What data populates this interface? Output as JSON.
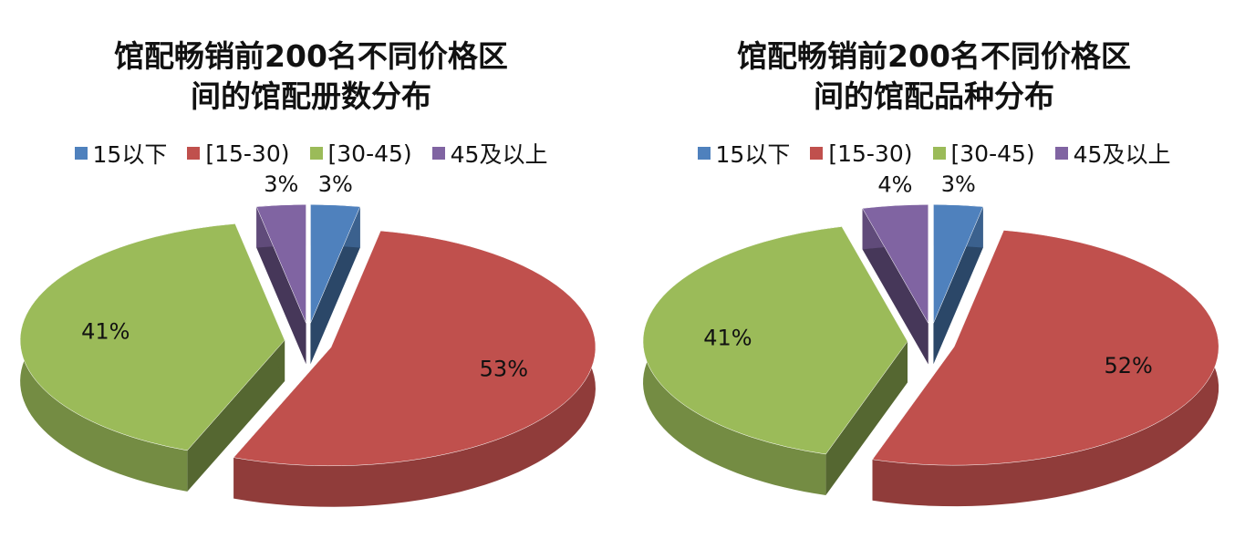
{
  "chart_data": [
    {
      "type": "pie",
      "title": [
        "馆配畅销前200名不同价格区",
        "间的馆配册数分布"
      ],
      "categories": [
        "15以下",
        "[15-30)",
        "[30-45)",
        "45及以上"
      ],
      "values": [
        3,
        53,
        41,
        3
      ],
      "value_labels": [
        "3%",
        "53%",
        "41%",
        "3%"
      ],
      "colors": [
        "#4f81bd",
        "#c0504d",
        "#9bbb59",
        "#8064a2"
      ],
      "legend": "top"
    },
    {
      "type": "pie",
      "title": [
        "馆配畅销前200名不同价格区",
        "间的馆配品种分布"
      ],
      "categories": [
        "15以下",
        "[15-30)",
        "[30-45)",
        "45及以上"
      ],
      "values": [
        3,
        52,
        41,
        4
      ],
      "value_labels": [
        "3%",
        "52%",
        "41%",
        "4%"
      ],
      "colors": [
        "#4f81bd",
        "#c0504d",
        "#9bbb59",
        "#8064a2"
      ],
      "legend": "top"
    }
  ]
}
